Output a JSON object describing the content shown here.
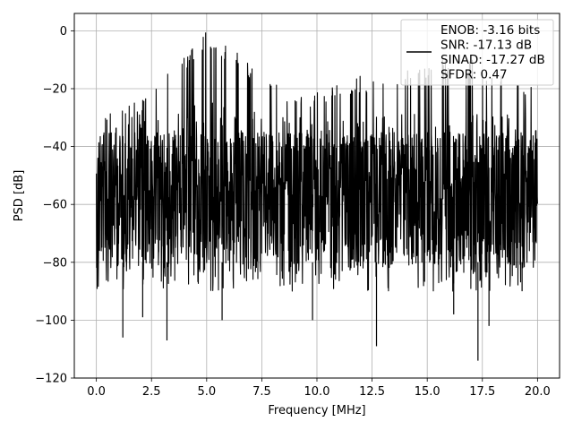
{
  "chart_data": {
    "type": "line",
    "title": "",
    "xlabel": "Frequency [MHz]",
    "ylabel": "PSD [dB]",
    "xlim": [
      -1,
      21
    ],
    "ylim": [
      -120,
      6
    ],
    "xticks": [
      0.0,
      2.5,
      5.0,
      7.5,
      10.0,
      12.5,
      15.0,
      17.5,
      20.0
    ],
    "xtick_labels": [
      "0.0",
      "2.5",
      "5.0",
      "7.5",
      "10.0",
      "12.5",
      "15.0",
      "17.5",
      "20.0"
    ],
    "yticks": [
      0,
      -20,
      -40,
      -60,
      -80,
      -100,
      -120
    ],
    "ytick_labels": [
      "0",
      "−20",
      "−40",
      "−60",
      "−80",
      "−100",
      "−120"
    ],
    "grid": true,
    "legend": {
      "location": "top-right",
      "entries": [
        "ENOB: -3.16 bits",
        "SNR: -17.13 dB",
        "SINAD: -17.27 dB",
        "SFDR: 0.47"
      ]
    },
    "series": [
      {
        "color": "#000000",
        "x_range": [
          0.0,
          20.0
        ],
        "upper_envelope": [
          {
            "x": 0.0,
            "y": -27
          },
          {
            "x": 0.5,
            "y": -27
          },
          {
            "x": 1.0,
            "y": -26
          },
          {
            "x": 1.5,
            "y": -24
          },
          {
            "x": 2.0,
            "y": -24
          },
          {
            "x": 2.5,
            "y": -20
          },
          {
            "x": 3.0,
            "y": -15
          },
          {
            "x": 3.5,
            "y": -11
          },
          {
            "x": 4.0,
            "y": -8
          },
          {
            "x": 4.5,
            "y": -5
          },
          {
            "x": 5.0,
            "y": 0
          },
          {
            "x": 5.5,
            "y": -3
          },
          {
            "x": 6.0,
            "y": -5
          },
          {
            "x": 6.5,
            "y": -8
          },
          {
            "x": 7.0,
            "y": -12
          },
          {
            "x": 7.5,
            "y": -13
          },
          {
            "x": 8.0,
            "y": -18
          },
          {
            "x": 8.5,
            "y": -20
          },
          {
            "x": 9.0,
            "y": -20
          },
          {
            "x": 9.5,
            "y": -20
          },
          {
            "x": 10.0,
            "y": -21
          },
          {
            "x": 10.5,
            "y": -19
          },
          {
            "x": 11.0,
            "y": -18
          },
          {
            "x": 11.5,
            "y": -19
          },
          {
            "x": 12.0,
            "y": -15
          },
          {
            "x": 12.5,
            "y": -18
          },
          {
            "x": 13.0,
            "y": -14
          },
          {
            "x": 13.5,
            "y": -14
          },
          {
            "x": 14.0,
            "y": -12
          },
          {
            "x": 14.5,
            "y": -10
          },
          {
            "x": 15.0,
            "y": -12
          },
          {
            "x": 15.5,
            "y": -9
          },
          {
            "x": 16.0,
            "y": -10
          },
          {
            "x": 16.5,
            "y": -10
          },
          {
            "x": 17.0,
            "y": -10
          },
          {
            "x": 17.5,
            "y": -11
          },
          {
            "x": 18.0,
            "y": -13
          },
          {
            "x": 18.5,
            "y": -14
          },
          {
            "x": 19.0,
            "y": -17
          },
          {
            "x": 19.5,
            "y": -18
          },
          {
            "x": 20.0,
            "y": -21
          }
        ],
        "dense_band": [
          -35,
          -82
        ],
        "lower_spikes": [
          {
            "x": 1.2,
            "y": -106
          },
          {
            "x": 2.1,
            "y": -99
          },
          {
            "x": 3.2,
            "y": -107
          },
          {
            "x": 5.7,
            "y": -100
          },
          {
            "x": 9.8,
            "y": -100
          },
          {
            "x": 12.7,
            "y": -109
          },
          {
            "x": 16.2,
            "y": -98
          },
          {
            "x": 17.3,
            "y": -114
          },
          {
            "x": 17.8,
            "y": -102
          },
          {
            "x": 19.3,
            "y": -90
          }
        ]
      }
    ]
  }
}
